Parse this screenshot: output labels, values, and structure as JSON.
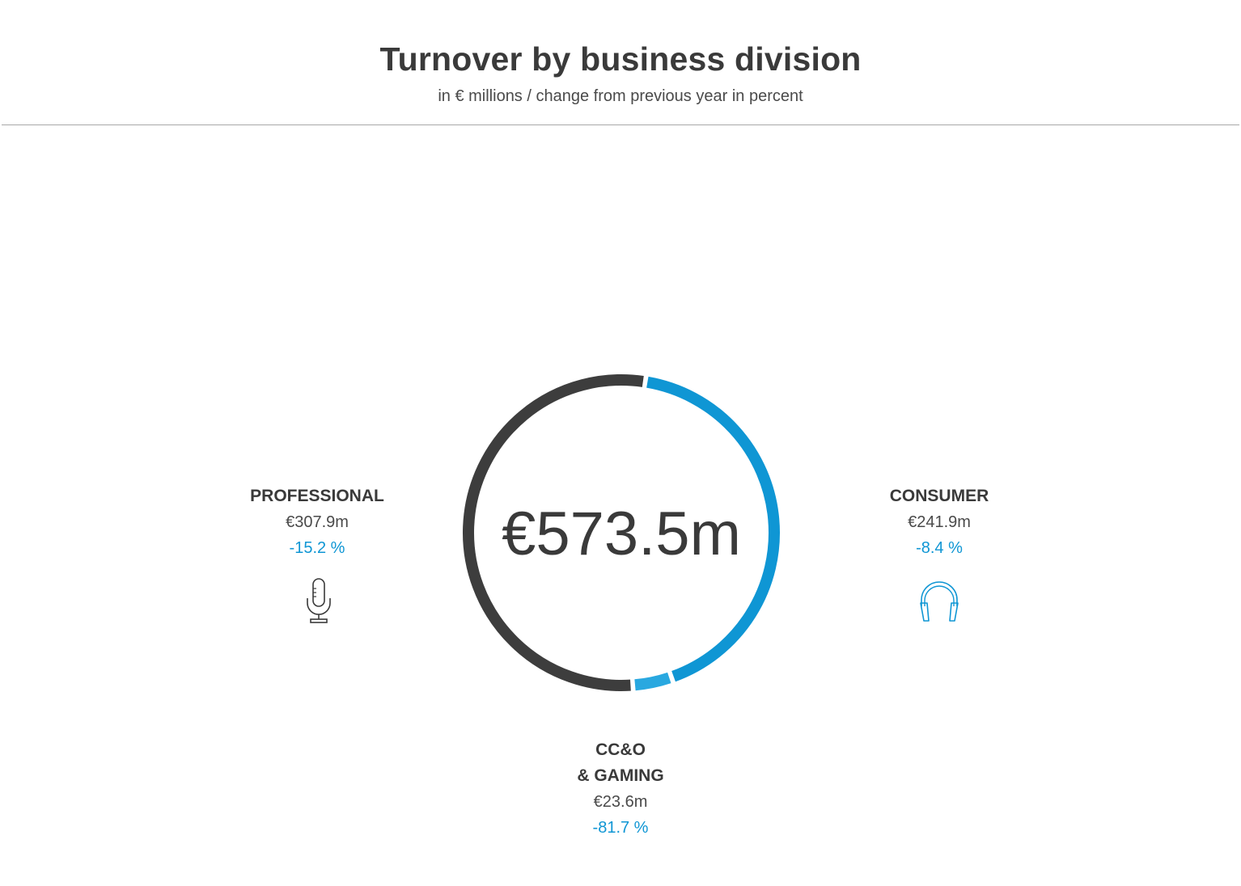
{
  "header": {
    "title": "Turnover by business division",
    "subtitle": "in € millions / change from previous year in percent"
  },
  "center": {
    "total": "€573.5m"
  },
  "segments": {
    "professional": {
      "name": "PROFESSIONAL",
      "value": "€307.9m",
      "change": "-15.2 %",
      "icon": "microphone-icon"
    },
    "consumer": {
      "name": "CONSUMER",
      "value": "€241.9m",
      "change": "-8.4 %",
      "icon": "headphones-icon"
    },
    "ccog": {
      "name_line1": "CC&O",
      "name_line2": "& GAMING",
      "value": "€23.6m",
      "change": "-81.7 %"
    }
  },
  "colors": {
    "professional": "#3d3d3d",
    "consumer": "#0f96d4",
    "ccog": "#29a8e0",
    "text_dark": "#3a3a3a",
    "accent": "#0f96d4"
  },
  "chart_data": {
    "type": "pie",
    "title": "Turnover by business division",
    "subtitle": "in € millions / change from previous year in percent",
    "total": 573.4,
    "categories": [
      "PROFESSIONAL",
      "CONSUMER",
      "CC&O & GAMING"
    ],
    "values": [
      307.9,
      241.9,
      23.6
    ],
    "change_pct": [
      -15.2,
      -8.4,
      -81.7
    ],
    "colors": [
      "#3d3d3d",
      "#0f96d4",
      "#29a8e0"
    ]
  }
}
